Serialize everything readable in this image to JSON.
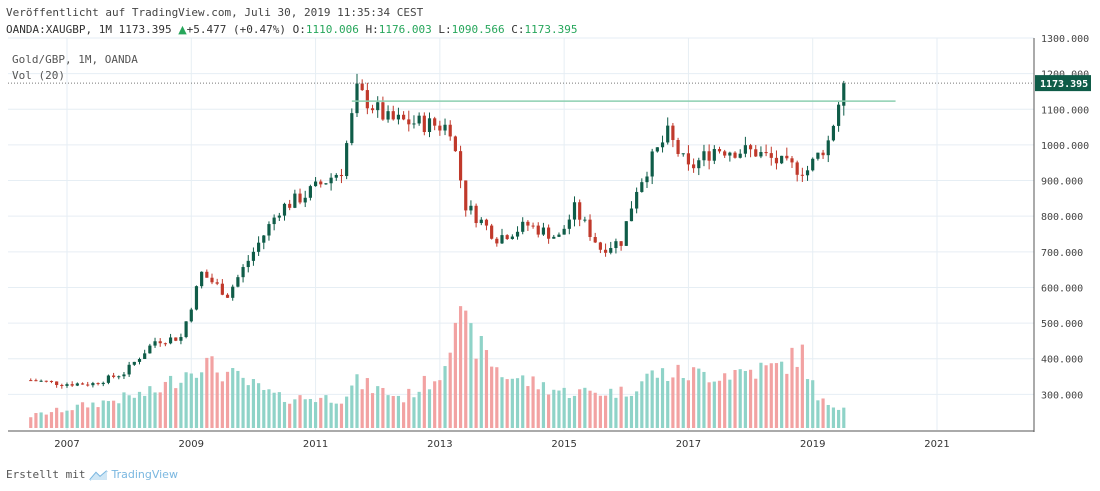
{
  "header": {
    "published": "Veröffentlicht auf TradingView.com, Juli 30, 2019 11:35:34 CEST",
    "symbol": "OANDA:XAUGBP, 1M",
    "last": "1173.395",
    "change": "+5.477 (+0.47%)",
    "o_label": "O:",
    "o": "1110.006",
    "h_label": "H:",
    "h": "1176.003",
    "l_label": "L:",
    "l": "1090.566",
    "c_label": "C:",
    "c": "1173.395"
  },
  "legend": {
    "title": "Gold/GBP, 1M, OANDA",
    "volume": "Vol (20)"
  },
  "footer": {
    "created_with": "Erstellt mit",
    "brand": "TradingView"
  },
  "colors": {
    "up": "#0f5c48",
    "down": "#c0392b",
    "vol_up": "#8fd3c8",
    "vol_down": "#f2a2a2",
    "grid": "#e6eef4",
    "hline": "#8ccfb0",
    "price_tag": "#0f5c48"
  },
  "chart_data": {
    "type": "candlestick",
    "title": "Gold/GBP, 1M, OANDA",
    "x_ticks": [
      "2007",
      "2009",
      "2011",
      "2013",
      "2015",
      "2017",
      "2019",
      "2021"
    ],
    "y_ticks": [
      "300.000",
      "400.000",
      "500.000",
      "600.000",
      "700.000",
      "800.000",
      "900.000",
      "1000.000",
      "1100.000",
      "1200.000",
      "1300.000"
    ],
    "ylim": [
      200,
      1300
    ],
    "last_price": "1173.395",
    "horizontal_line": 1123,
    "horizontal_line_range": [
      "2011-08",
      "2020-05"
    ],
    "anchors": [
      [
        "2006-06",
        340
      ],
      [
        "2006-12",
        330
      ],
      [
        "2007-06",
        330
      ],
      [
        "2007-12",
        360
      ],
      [
        "2008-06",
        450
      ],
      [
        "2008-11",
        460
      ],
      [
        "2009-03",
        640
      ],
      [
        "2009-08",
        580
      ],
      [
        "2010-06",
        820
      ],
      [
        "2010-11",
        860
      ],
      [
        "2011-06",
        930
      ],
      [
        "2011-09",
        1150
      ],
      [
        "2012-03",
        1070
      ],
      [
        "2012-10",
        1060
      ],
      [
        "2013-03",
        1050
      ],
      [
        "2013-06",
        830
      ],
      [
        "2013-12",
        740
      ],
      [
        "2014-06",
        775
      ],
      [
        "2014-12",
        740
      ],
      [
        "2015-03",
        820
      ],
      [
        "2015-08",
        710
      ],
      [
        "2015-12",
        730
      ],
      [
        "2016-03",
        880
      ],
      [
        "2016-06",
        960
      ],
      [
        "2016-09",
        1030
      ],
      [
        "2017-01",
        930
      ],
      [
        "2017-06",
        990
      ],
      [
        "2018-02",
        980
      ],
      [
        "2018-08",
        940
      ],
      [
        "2018-12",
        930
      ],
      [
        "2019-04",
        1010
      ],
      [
        "2019-07",
        1173
      ]
    ],
    "volume_anchors": [
      [
        "2006-06",
        10
      ],
      [
        "2008-06",
        30
      ],
      [
        "2009-03",
        55
      ],
      [
        "2010-06",
        25
      ],
      [
        "2011-06",
        25
      ],
      [
        "2011-09",
        38
      ],
      [
        "2012-06",
        25
      ],
      [
        "2013-01",
        45
      ],
      [
        "2013-04",
        95
      ],
      [
        "2013-07",
        75
      ],
      [
        "2014-01",
        45
      ],
      [
        "2015-01",
        30
      ],
      [
        "2016-01",
        30
      ],
      [
        "2016-06",
        45
      ],
      [
        "2017-06",
        45
      ],
      [
        "2018-06",
        50
      ],
      [
        "2018-11",
        62
      ],
      [
        "2019-02",
        22
      ],
      [
        "2019-07",
        18
      ]
    ]
  }
}
